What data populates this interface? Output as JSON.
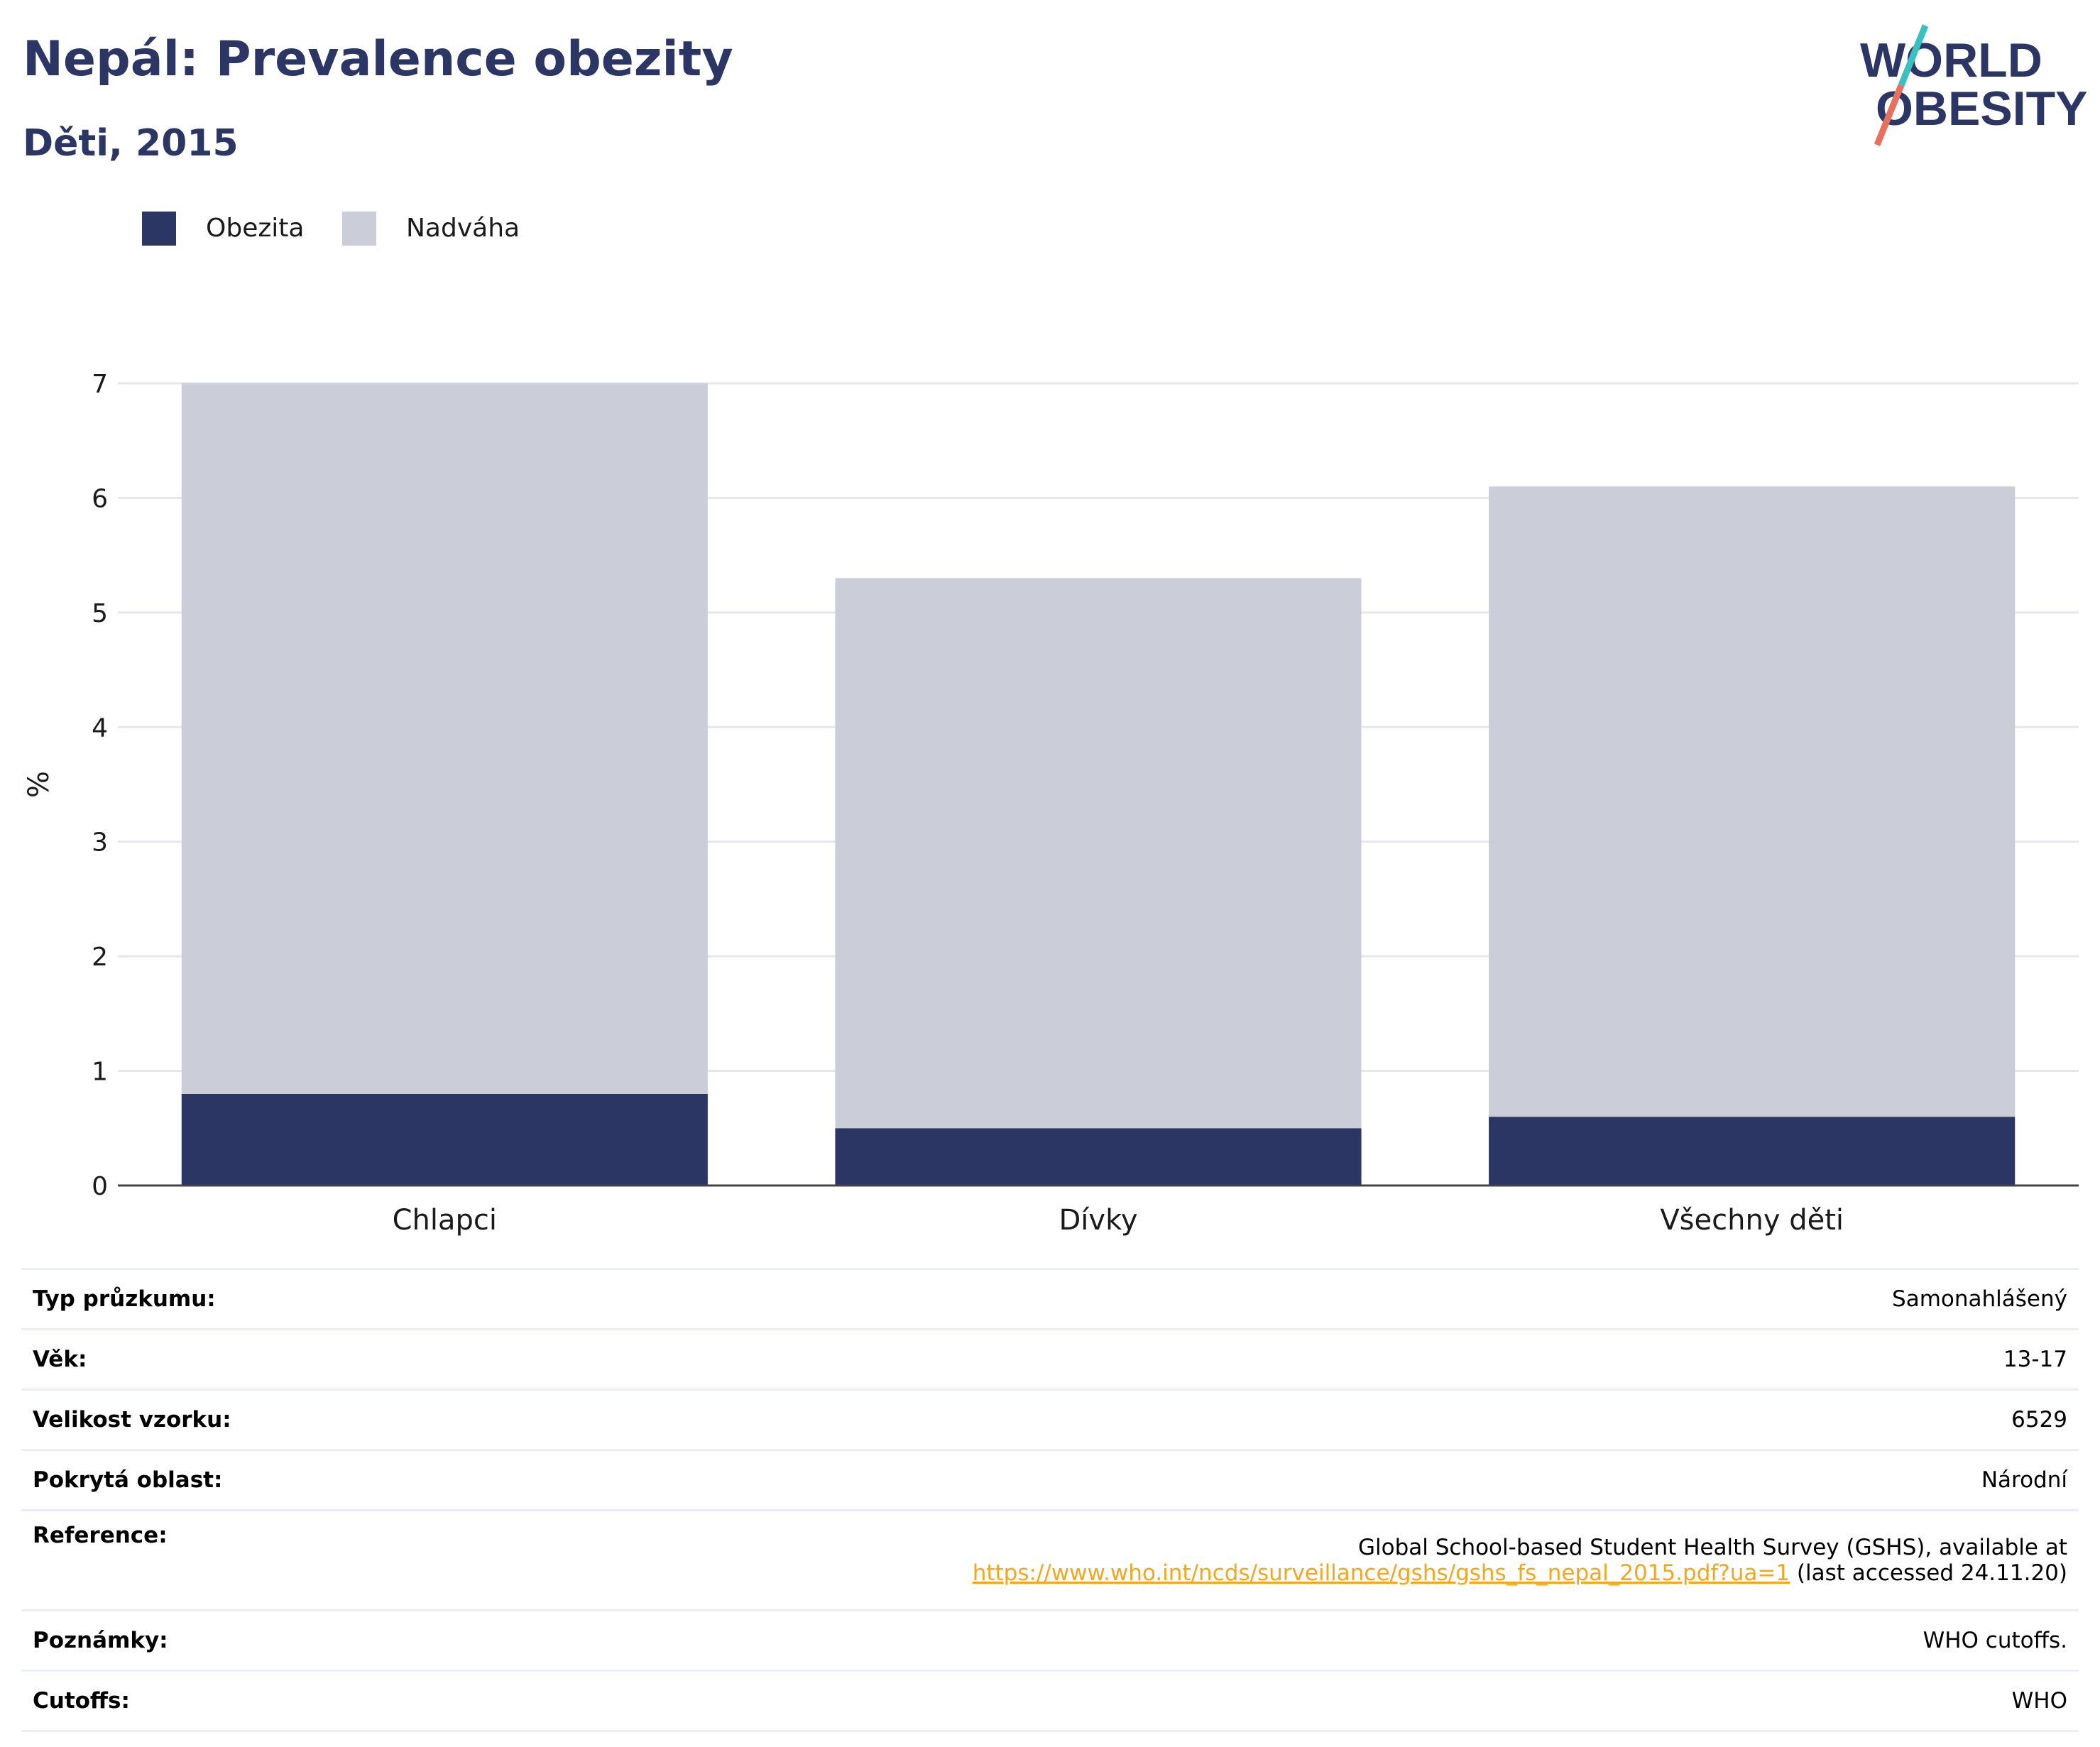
{
  "header": {
    "title": "Nepál: Prevalence obezity",
    "subtitle": "Děti, 2015"
  },
  "logo": {
    "line1": "WORLD",
    "line2": "OBESITY",
    "colors": {
      "text": "#2b3664",
      "slash_top": "#3bbfbf",
      "slash_bottom": "#e8705f"
    }
  },
  "legend": [
    {
      "label": "Obezita",
      "color": "#2b3664"
    },
    {
      "label": "Nadváha",
      "color": "#cbcdd8"
    }
  ],
  "chart_data": {
    "type": "bar",
    "stacked": true,
    "categories": [
      "Chlapci",
      "Dívky",
      "Všechny děti"
    ],
    "series": [
      {
        "name": "Obezita",
        "values": [
          0.8,
          0.5,
          0.6
        ],
        "color": "#2b3664"
      },
      {
        "name": "Nadváha",
        "values": [
          6.2,
          4.8,
          5.5
        ],
        "color": "#cbcdd8"
      }
    ],
    "ylabel": "%",
    "ylim": [
      0,
      7
    ],
    "yticks": [
      0,
      1,
      2,
      3,
      4,
      5,
      6,
      7
    ],
    "grid": true,
    "legend_position": "top-left"
  },
  "info": {
    "rows": [
      {
        "key": "Typ průzkumu:",
        "value": "Samonahlášený"
      },
      {
        "key": "Věk:",
        "value": "13-17"
      },
      {
        "key": "Velikost vzorku:",
        "value": "6529"
      },
      {
        "key": "Pokrytá oblast:",
        "value": "Národní"
      }
    ],
    "reference": {
      "key": "Reference:",
      "line1": "Global School-based Student Health Survey (GSHS), available at",
      "link": "https://www.who.int/ncds/surveillance/gshs/gshs_fs_nepal_2015.pdf?ua=1",
      "suffix": " (last accessed 24.11.20)"
    },
    "rows_after": [
      {
        "key": "Poznámky:",
        "value": "WHO cutoffs."
      },
      {
        "key": "Cutoffs:",
        "value": "WHO"
      }
    ]
  }
}
